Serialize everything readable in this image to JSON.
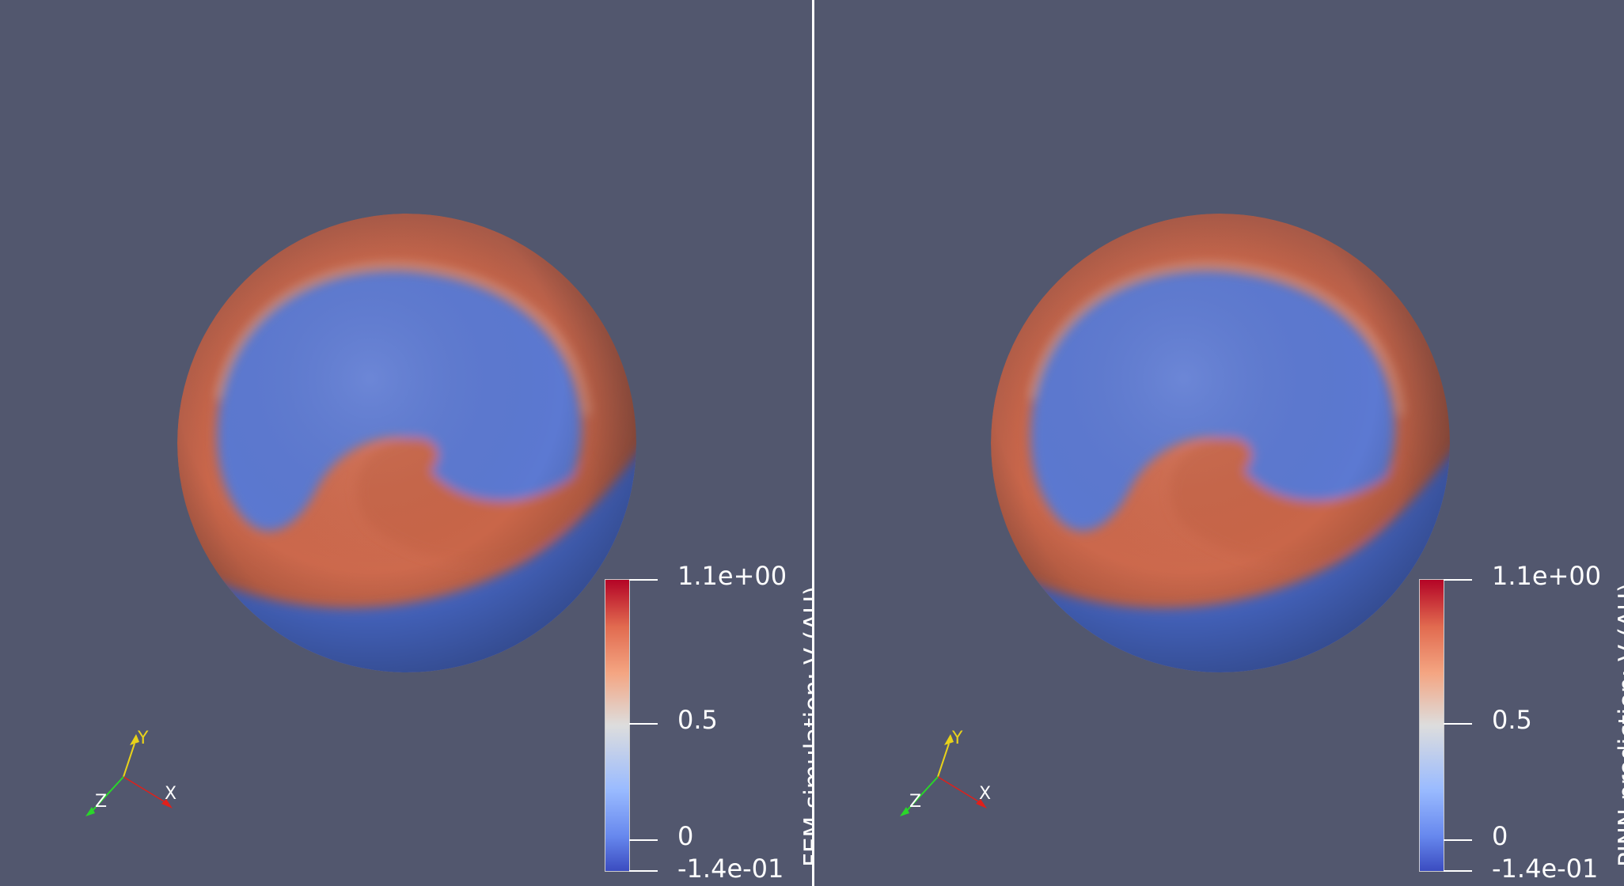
{
  "panels": [
    {
      "id": "fem",
      "colorbar": {
        "title": "FEM simulation: V (AU)",
        "max_label": "1.1e+00",
        "mid_label": "0.5",
        "zero_label": "0",
        "min_label": "-1.4e-01"
      },
      "axes": {
        "x": "X",
        "y": "Y",
        "z": "Z"
      }
    },
    {
      "id": "pinn",
      "colorbar": {
        "title": "PINN prediction: V (AU)",
        "max_label": "1.1e+00",
        "mid_label": "0.5",
        "zero_label": "0",
        "min_label": "-1.4e-01"
      },
      "axes": {
        "x": "X",
        "y": "Y",
        "z": "Z"
      }
    }
  ],
  "colors": {
    "background": "#52576e",
    "colormap_low": "#3b4cc0",
    "colormap_mid": "#dddddd",
    "colormap_high": "#b40426",
    "axis_x": "#e0201a",
    "axis_y": "#e8d21a",
    "axis_z": "#2ad62a"
  }
}
